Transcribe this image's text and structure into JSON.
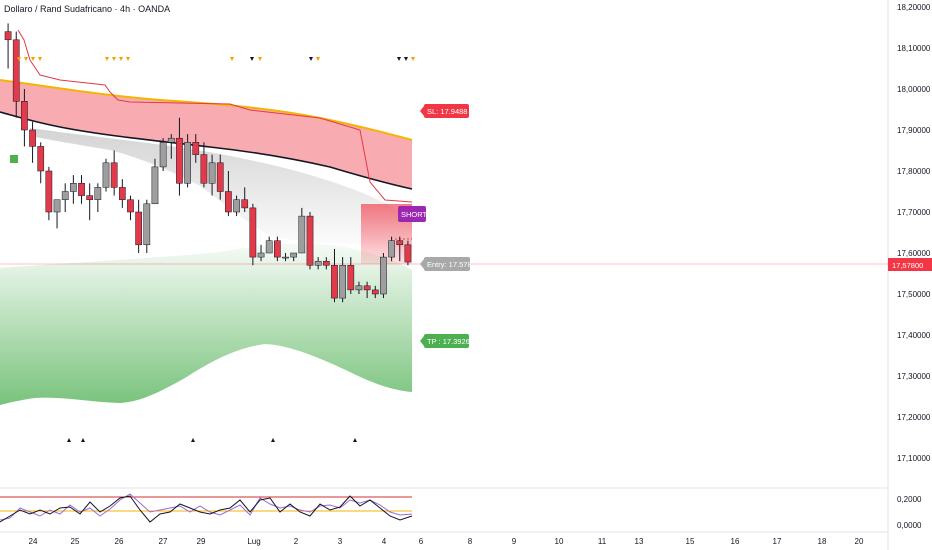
{
  "header": {
    "title": "Dollaro / Rand Sudafricano · 4h · OANDA"
  },
  "price_axis": {
    "labels": [
      "18,20000",
      "18,10000",
      "18,00000",
      "17,90000",
      "17,80000",
      "17,70000",
      "17,60000",
      "17,50000",
      "17,40000",
      "17,30000",
      "17,20000",
      "17,10000"
    ],
    "current_price_tag": "17,57800"
  },
  "date_axis": {
    "labels": [
      "24",
      "25",
      "26",
      "27",
      "29",
      "Lug",
      "2",
      "3",
      "4",
      "6",
      "8",
      "9",
      "10",
      "11",
      "13",
      "15",
      "16",
      "17",
      "18",
      "20"
    ]
  },
  "tags": {
    "sl": "SL: 17.9488",
    "short": "SHORT",
    "entry": "Entry: 17.578",
    "tp": "TP : 17.3926"
  },
  "oscillator_axis": {
    "labels": [
      "0,2000",
      "0,0000"
    ]
  },
  "colors": {
    "bull": "#9e9e9e",
    "bear": "#e23a4a",
    "sl_tag": "#f23645",
    "tp_tag": "#4caf50",
    "short_tag": "#9c27b0",
    "entry_tag": "#a8a8a8",
    "current_price_tag": "#f23645",
    "red_band": "#f7a3a8",
    "green_band": "#4caf50",
    "orange_line": "#f5b400",
    "triangle_orange": "#f5a000"
  },
  "chart_data": {
    "type": "candlestick",
    "symbol": "Dollaro / Rand Sudafricano · 4h · OANDA",
    "ylim": [
      17.05,
      18.22
    ],
    "current_price": 17.578,
    "levels": {
      "sl": 17.9488,
      "entry": 17.578,
      "tp": 17.3926
    },
    "candles": [
      [
        18.14,
        18.16,
        18.05,
        18.12
      ],
      [
        18.12,
        18.14,
        17.93,
        17.97
      ],
      [
        17.97,
        18.0,
        17.86,
        17.9
      ],
      [
        17.9,
        17.92,
        17.82,
        17.86
      ],
      [
        17.86,
        17.87,
        17.77,
        17.8
      ],
      [
        17.8,
        17.81,
        17.68,
        17.7
      ],
      [
        17.7,
        17.73,
        17.66,
        17.73
      ],
      [
        17.73,
        17.77,
        17.7,
        17.75
      ],
      [
        17.75,
        17.79,
        17.72,
        17.77
      ],
      [
        17.77,
        17.79,
        17.72,
        17.74
      ],
      [
        17.74,
        17.77,
        17.68,
        17.73
      ],
      [
        17.73,
        17.77,
        17.7,
        17.76
      ],
      [
        17.76,
        17.83,
        17.75,
        17.82
      ],
      [
        17.82,
        17.85,
        17.74,
        17.76
      ],
      [
        17.76,
        17.78,
        17.71,
        17.73
      ],
      [
        17.73,
        17.74,
        17.68,
        17.7
      ],
      [
        17.7,
        17.73,
        17.6,
        17.62
      ],
      [
        17.62,
        17.73,
        17.6,
        17.72
      ],
      [
        17.72,
        17.83,
        17.72,
        17.81
      ],
      [
        17.81,
        17.88,
        17.8,
        17.87
      ],
      [
        17.87,
        17.89,
        17.83,
        17.88
      ],
      [
        17.88,
        17.93,
        17.74,
        17.77
      ],
      [
        17.77,
        17.89,
        17.76,
        17.87
      ],
      [
        17.87,
        17.89,
        17.82,
        17.84
      ],
      [
        17.84,
        17.87,
        17.76,
        17.77
      ],
      [
        17.77,
        17.84,
        17.74,
        17.82
      ],
      [
        17.82,
        17.84,
        17.73,
        17.75
      ],
      [
        17.75,
        17.8,
        17.69,
        17.7
      ],
      [
        17.7,
        17.74,
        17.69,
        17.73
      ],
      [
        17.73,
        17.76,
        17.7,
        17.71
      ],
      [
        17.71,
        17.72,
        17.57,
        17.59
      ],
      [
        17.59,
        17.62,
        17.58,
        17.6
      ],
      [
        17.6,
        17.64,
        17.6,
        17.63
      ],
      [
        17.63,
        17.64,
        17.58,
        17.59
      ],
      [
        17.59,
        17.6,
        17.58,
        17.59
      ],
      [
        17.59,
        17.6,
        17.58,
        17.6
      ],
      [
        17.6,
        17.71,
        17.6,
        17.69
      ],
      [
        17.69,
        17.7,
        17.56,
        17.57
      ],
      [
        17.57,
        17.59,
        17.56,
        17.58
      ],
      [
        17.58,
        17.59,
        17.56,
        17.57
      ],
      [
        17.57,
        17.61,
        17.48,
        17.49
      ],
      [
        17.49,
        17.59,
        17.48,
        17.57
      ],
      [
        17.57,
        17.59,
        17.5,
        17.51
      ],
      [
        17.51,
        17.53,
        17.5,
        17.52
      ],
      [
        17.52,
        17.53,
        17.49,
        17.51
      ],
      [
        17.51,
        17.52,
        17.49,
        17.5
      ],
      [
        17.5,
        17.6,
        17.49,
        17.59
      ],
      [
        17.59,
        17.64,
        17.58,
        17.63
      ],
      [
        17.63,
        17.64,
        17.58,
        17.62
      ],
      [
        17.62,
        17.63,
        17.57,
        17.578
      ]
    ]
  }
}
